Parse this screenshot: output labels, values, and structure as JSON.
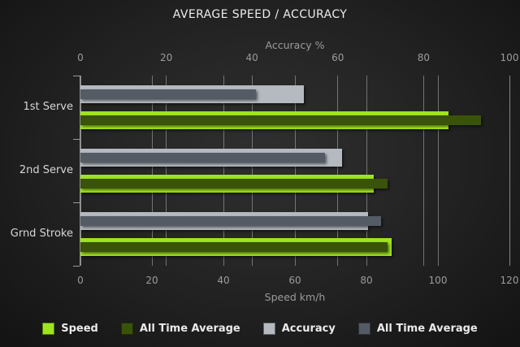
{
  "title": "AVERAGE SPEED / ACCURACY",
  "chart_data": {
    "type": "bar",
    "orientation": "horizontal",
    "categories": [
      "1st Serve",
      "2nd Serve",
      "Grnd Stroke"
    ],
    "series": [
      {
        "name": "Speed",
        "axis": "bottom",
        "style": "thick",
        "color": "#9fe51e",
        "values": [
          103,
          82,
          87
        ]
      },
      {
        "name": "All Time Average",
        "axis": "bottom",
        "style": "thin",
        "color": "#3a530a",
        "values": [
          112,
          86,
          86
        ]
      },
      {
        "name": "Accuracy",
        "axis": "top",
        "style": "thick",
        "color": "#b4bac0",
        "values": [
          52,
          61,
          67
        ]
      },
      {
        "name": "All Time Average",
        "axis": "top",
        "style": "thin",
        "color": "#545b64",
        "values": [
          41,
          57,
          70
        ]
      }
    ],
    "axes": {
      "top": {
        "label": "Accuracy %",
        "min": 0,
        "max": 100,
        "ticks": [
          0,
          20,
          40,
          60,
          80,
          100
        ]
      },
      "bottom": {
        "label": "Speed km/h",
        "min": 0,
        "max": 120,
        "ticks": [
          0,
          20,
          40,
          60,
          80,
          100,
          120
        ]
      }
    },
    "legend": [
      {
        "label": "Speed",
        "color": "#9fe51e"
      },
      {
        "label": "All Time Average",
        "color": "#3a530a"
      },
      {
        "label": "Accuracy",
        "color": "#b4bac0"
      },
      {
        "label": "All Time Average",
        "color": "#545b64"
      }
    ],
    "grid": true,
    "legend_position": "bottom"
  },
  "colors": {
    "background_center": "#2f2f2f",
    "background_edge": "#131313",
    "gridline": "#8f8f8f",
    "tick_text": "#9b9b9b",
    "category_text": "#d6d6d6",
    "title_text": "#ececec",
    "legend_text": "#eaeaea"
  }
}
